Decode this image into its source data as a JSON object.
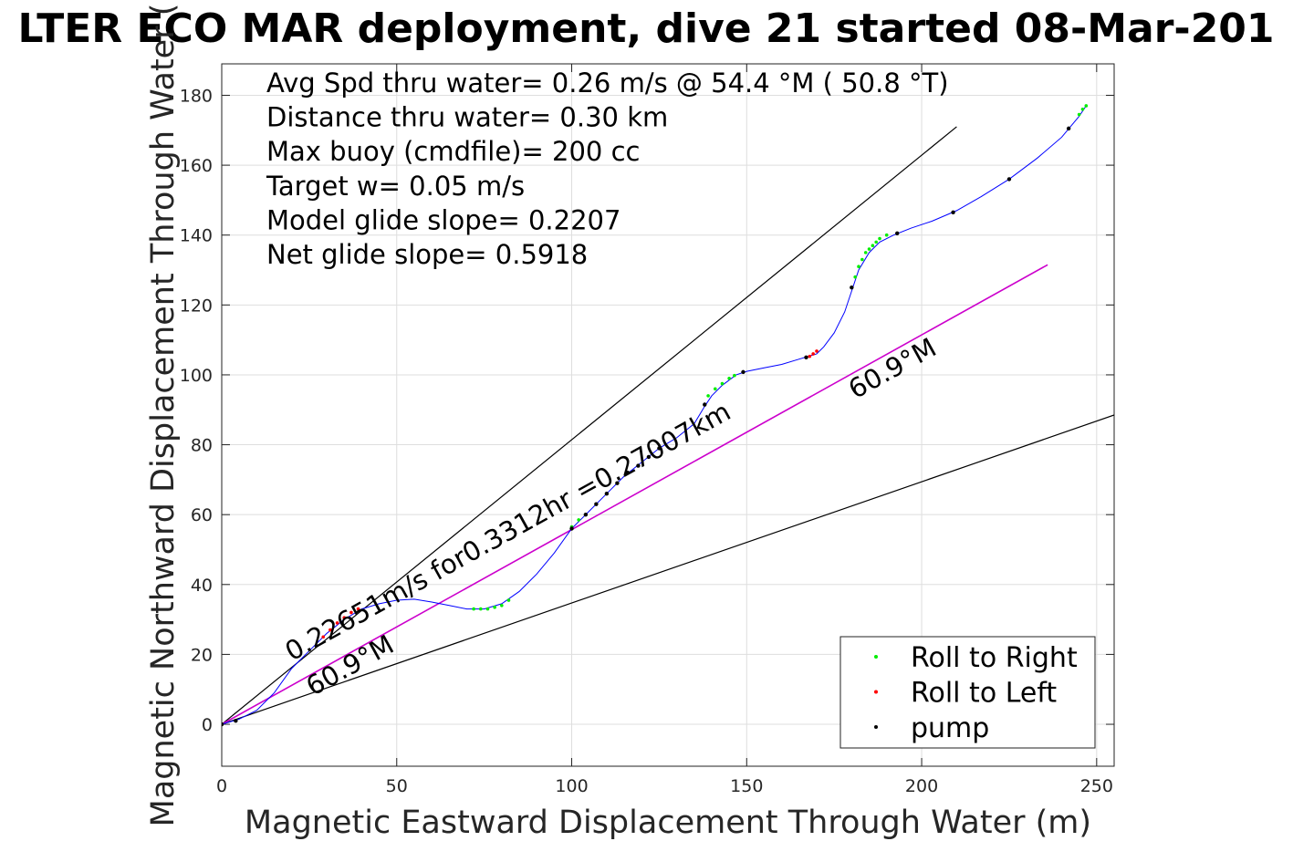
{
  "chart_data": {
    "type": "line",
    "title": "LTER ECO MAR deployment, dive 21 started 08-Mar-201",
    "xlabel": "Magnetic Eastward Displacement Through Water (m)",
    "ylabel": "Magnetic Northward Displacement Through Water (",
    "xlim": [
      0,
      255
    ],
    "ylim": [
      -12,
      189
    ],
    "x_ticks": [
      0,
      50,
      100,
      150,
      200,
      250
    ],
    "y_ticks": [
      0,
      20,
      40,
      60,
      80,
      100,
      120,
      140,
      160,
      180
    ],
    "grid": true,
    "legend_position": "bottom-right",
    "stats_text": [
      "Avg Spd thru water=  0.26 m/s @  54.4 °M ( 50.8 °T)",
      "Distance thru water=  0.30 km",
      "Max buoy (cmdfile)= 200 cc",
      "Target w= 0.05 m/s",
      "Model glide slope= 0.2207",
      "Net glide slope= 0.5918"
    ],
    "annotations": [
      {
        "text": "0.22651m/s for0.3312hr =0.27007km",
        "x": 20,
        "y": 18,
        "angle_deg": -29
      },
      {
        "text": "60.9°M",
        "x": 26,
        "y": 8,
        "angle_deg": -29
      },
      {
        "text": "60.9°M",
        "x": 181,
        "y": 93,
        "angle_deg": -29
      }
    ],
    "reference_lines": [
      {
        "name": "upper-bound-line",
        "color": "#000000",
        "x": [
          0,
          210
        ],
        "y": [
          0,
          171
        ]
      },
      {
        "name": "lower-bound-line",
        "color": "#000000",
        "x": [
          0,
          255
        ],
        "y": [
          0,
          88.5
        ]
      },
      {
        "name": "heading-line",
        "color": "#cc00cc",
        "x": [
          0,
          236
        ],
        "y": [
          0,
          131.5
        ]
      }
    ],
    "series": [
      {
        "name": "track",
        "color": "#0000ff",
        "points": [
          [
            0,
            0
          ],
          [
            5,
            1.5
          ],
          [
            10,
            4
          ],
          [
            15,
            9
          ],
          [
            20,
            16
          ],
          [
            25,
            21
          ],
          [
            30,
            26
          ],
          [
            35,
            30
          ],
          [
            40,
            33
          ],
          [
            45,
            34.5
          ],
          [
            50,
            35.5
          ],
          [
            55,
            35.8
          ],
          [
            60,
            35
          ],
          [
            65,
            34
          ],
          [
            70,
            33
          ],
          [
            75,
            33
          ],
          [
            80,
            34.5
          ],
          [
            85,
            38
          ],
          [
            90,
            43
          ],
          [
            95,
            49
          ],
          [
            100,
            56
          ],
          [
            105,
            61
          ],
          [
            110,
            66
          ],
          [
            115,
            71
          ],
          [
            120,
            75
          ],
          [
            125,
            79
          ],
          [
            130,
            82
          ],
          [
            135,
            86
          ],
          [
            138,
            91
          ],
          [
            140,
            94
          ],
          [
            143,
            97
          ],
          [
            147,
            100
          ],
          [
            150,
            101
          ],
          [
            155,
            102
          ],
          [
            160,
            103
          ],
          [
            165,
            104.5
          ],
          [
            170,
            106
          ],
          [
            172,
            108
          ],
          [
            175,
            112
          ],
          [
            178,
            118
          ],
          [
            180,
            124
          ],
          [
            182,
            130
          ],
          [
            185,
            135
          ],
          [
            188,
            138
          ],
          [
            192,
            140
          ],
          [
            197,
            142
          ],
          [
            203,
            144
          ],
          [
            210,
            147
          ],
          [
            217,
            151
          ],
          [
            225,
            156
          ],
          [
            233,
            162
          ],
          [
            240,
            168
          ],
          [
            245,
            174
          ],
          [
            247,
            177
          ]
        ]
      },
      {
        "name": "Roll to Right",
        "color": "#00ee00",
        "points": [
          [
            72,
            33
          ],
          [
            74,
            33
          ],
          [
            76,
            33
          ],
          [
            78,
            33.5
          ],
          [
            80,
            34
          ],
          [
            82,
            35.5
          ],
          [
            100,
            56.5
          ],
          [
            102,
            58.5
          ],
          [
            139,
            94
          ],
          [
            141,
            96
          ],
          [
            143,
            97.5
          ],
          [
            145,
            99
          ],
          [
            146.5,
            99.8
          ],
          [
            181,
            128
          ],
          [
            182,
            131
          ],
          [
            183,
            133
          ],
          [
            184,
            135
          ],
          [
            185,
            136
          ],
          [
            186,
            137
          ],
          [
            187,
            138
          ],
          [
            188,
            139
          ],
          [
            190,
            140
          ],
          [
            245,
            174.5
          ],
          [
            246,
            176
          ],
          [
            247,
            177
          ]
        ]
      },
      {
        "name": "Roll to Left",
        "color": "#ff0000",
        "points": [
          [
            29,
            25
          ],
          [
            31,
            27
          ],
          [
            33,
            29
          ],
          [
            35,
            30.5
          ],
          [
            37,
            32
          ],
          [
            39,
            33
          ],
          [
            168,
            105.3
          ],
          [
            169,
            106
          ],
          [
            170,
            106.8
          ]
        ]
      },
      {
        "name": "pump",
        "color": "#000000",
        "points": [
          [
            0,
            0
          ],
          [
            4,
            1
          ],
          [
            100,
            56
          ],
          [
            104,
            60
          ],
          [
            107,
            63
          ],
          [
            110,
            66
          ],
          [
            113,
            69
          ],
          [
            116,
            72
          ],
          [
            119,
            74
          ],
          [
            122,
            76.5
          ],
          [
            125,
            79
          ],
          [
            138,
            91.5
          ],
          [
            149,
            100.8
          ],
          [
            167,
            105
          ],
          [
            180,
            125
          ],
          [
            193,
            140.5
          ],
          [
            209,
            146.5
          ],
          [
            225,
            156
          ],
          [
            242,
            170.5
          ]
        ]
      }
    ],
    "legend": [
      {
        "label": "Roll to Right",
        "color": "#00ee00"
      },
      {
        "label": "Roll to Left",
        "color": "#ff0000"
      },
      {
        "label": "pump",
        "color": "#000000"
      }
    ]
  }
}
